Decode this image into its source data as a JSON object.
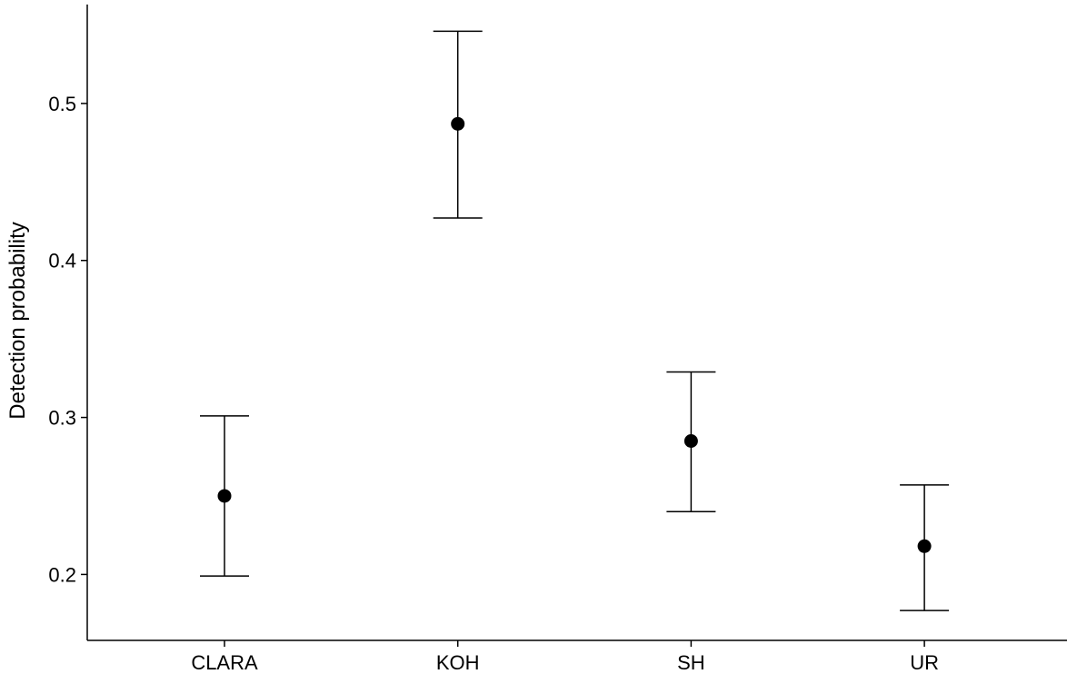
{
  "chart_data": {
    "type": "scatter",
    "title": "",
    "xlabel": "",
    "ylabel": "Detection probability",
    "categories": [
      "CLARA",
      "KOH",
      "SH",
      "UR"
    ],
    "series": [
      {
        "values": [
          0.25,
          0.487,
          0.285,
          0.218
        ],
        "lower": [
          0.199,
          0.427,
          0.24,
          0.177
        ],
        "upper": [
          0.301,
          0.546,
          0.329,
          0.257
        ]
      }
    ],
    "yticks": [
      0.2,
      0.3,
      0.4,
      0.5
    ],
    "ytick_labels": [
      "0.2",
      "0.3",
      "0.4",
      "0.5"
    ],
    "ylim": [
      0.158,
      0.563
    ],
    "grid": false,
    "legend": "none",
    "colors": {
      "point": "#000000",
      "errorbar": "#000000",
      "axis": "#000000"
    }
  }
}
